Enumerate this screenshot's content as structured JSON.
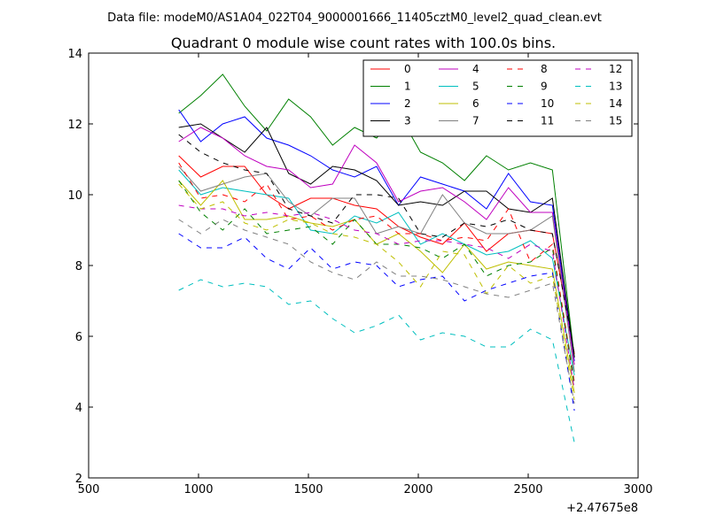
{
  "suptitle": "Data file: modeM0/AS1A04_022T04_9000001666_11405cztM0_level2_quad_clean.evt",
  "chart_data": {
    "type": "line",
    "title": "Quadrant 0 module wise count rates with 100.0s bins.",
    "xlabel": "",
    "ylabel": "",
    "x_offset_label": "+2.47675e8",
    "xlim": [
      500,
      3000
    ],
    "ylim": [
      2,
      14
    ],
    "xticks": [
      500,
      1000,
      1500,
      2000,
      2500,
      3000
    ],
    "yticks": [
      2,
      4,
      6,
      8,
      10,
      12,
      14
    ],
    "grid": false,
    "legend_position": "top-right",
    "legend_columns": 4,
    "x": [
      910,
      1010,
      1110,
      1210,
      1310,
      1410,
      1510,
      1610,
      1710,
      1810,
      1910,
      2010,
      2110,
      2210,
      2310,
      2410,
      2510,
      2610,
      2710
    ],
    "series": [
      {
        "name": "0",
        "color": "#ff0000",
        "dash": "solid",
        "values": [
          11.1,
          10.5,
          10.8,
          10.8,
          10.0,
          9.6,
          9.9,
          9.9,
          9.7,
          9.6,
          9.1,
          8.8,
          8.6,
          9.2,
          8.4,
          8.9,
          9.0,
          8.9,
          5.5
        ]
      },
      {
        "name": "1",
        "color": "#008000",
        "dash": "solid",
        "values": [
          12.3,
          12.8,
          13.4,
          12.5,
          11.8,
          12.7,
          12.2,
          11.4,
          11.9,
          11.6,
          12.3,
          11.2,
          10.9,
          10.4,
          11.1,
          10.7,
          10.9,
          10.7,
          5.4
        ]
      },
      {
        "name": "2",
        "color": "#0000ff",
        "dash": "solid",
        "values": [
          12.4,
          11.5,
          12.0,
          12.2,
          11.6,
          11.4,
          11.1,
          10.7,
          10.5,
          10.8,
          9.7,
          10.5,
          10.3,
          10.1,
          9.6,
          10.6,
          9.8,
          9.7,
          5.3
        ]
      },
      {
        "name": "3",
        "color": "#000000",
        "dash": "solid",
        "values": [
          11.9,
          12.0,
          11.6,
          11.2,
          11.9,
          10.6,
          10.3,
          10.8,
          10.7,
          10.4,
          9.7,
          9.8,
          9.7,
          10.1,
          10.1,
          9.6,
          9.5,
          9.9,
          5.4
        ]
      },
      {
        "name": "4",
        "color": "#bf00bf",
        "dash": "solid",
        "values": [
          11.5,
          11.9,
          11.6,
          11.1,
          10.8,
          10.7,
          10.2,
          10.3,
          11.4,
          10.9,
          9.8,
          10.1,
          10.2,
          9.8,
          9.3,
          10.2,
          9.5,
          9.5,
          5.2
        ]
      },
      {
        "name": "5",
        "color": "#00bfbf",
        "dash": "solid",
        "values": [
          10.7,
          10.0,
          10.2,
          10.1,
          10.0,
          9.9,
          9.0,
          8.9,
          9.4,
          9.2,
          9.5,
          8.6,
          8.9,
          8.6,
          8.3,
          8.4,
          8.7,
          8.2,
          4.9
        ]
      },
      {
        "name": "6",
        "color": "#bfbf00",
        "dash": "solid",
        "values": [
          10.4,
          9.7,
          10.4,
          9.3,
          9.3,
          9.4,
          9.2,
          9.1,
          9.3,
          8.6,
          8.9,
          8.4,
          7.8,
          8.6,
          7.9,
          8.1,
          8.0,
          7.9,
          4.4
        ]
      },
      {
        "name": "7",
        "color": "#808080",
        "dash": "solid",
        "values": [
          10.8,
          10.1,
          10.3,
          10.5,
          10.6,
          9.8,
          9.4,
          9.9,
          9.9,
          8.9,
          9.1,
          8.9,
          10.0,
          9.2,
          8.9,
          8.9,
          9.0,
          9.4,
          5.0
        ]
      },
      {
        "name": "8",
        "color": "#ff0000",
        "dash": "dashed",
        "values": [
          10.9,
          9.9,
          10.0,
          9.8,
          10.3,
          9.3,
          9.4,
          9.0,
          9.3,
          9.4,
          8.9,
          8.9,
          8.7,
          8.8,
          8.7,
          9.6,
          8.1,
          8.6,
          4.7
        ]
      },
      {
        "name": "9",
        "color": "#008000",
        "dash": "dashed",
        "values": [
          10.4,
          9.5,
          9.0,
          9.6,
          8.9,
          9.0,
          9.1,
          8.6,
          9.3,
          8.6,
          8.6,
          8.5,
          8.2,
          8.6,
          7.7,
          8.0,
          8.1,
          8.5,
          4.6
        ]
      },
      {
        "name": "10",
        "color": "#0000ff",
        "dash": "dashed",
        "values": [
          8.9,
          8.5,
          8.5,
          8.8,
          8.2,
          7.9,
          8.5,
          7.9,
          8.1,
          8.0,
          7.4,
          7.6,
          7.7,
          7.0,
          7.3,
          7.5,
          7.7,
          7.8,
          3.9
        ]
      },
      {
        "name": "11",
        "color": "#000000",
        "dash": "dashed",
        "values": [
          11.7,
          11.2,
          10.9,
          10.7,
          10.6,
          9.6,
          9.4,
          9.2,
          10.0,
          10.0,
          9.9,
          8.9,
          8.8,
          9.2,
          9.1,
          9.3,
          9.0,
          8.9,
          5.5
        ]
      },
      {
        "name": "12",
        "color": "#bf00bf",
        "dash": "dashed",
        "values": [
          9.7,
          9.6,
          9.6,
          9.4,
          9.5,
          9.4,
          9.5,
          9.3,
          9.0,
          8.9,
          8.6,
          8.7,
          8.7,
          8.6,
          8.5,
          8.2,
          8.6,
          8.4,
          4.5
        ]
      },
      {
        "name": "13",
        "color": "#00bfbf",
        "dash": "dashed",
        "values": [
          7.3,
          7.6,
          7.4,
          7.5,
          7.4,
          6.9,
          7.0,
          6.5,
          6.1,
          6.3,
          6.6,
          5.9,
          6.1,
          6.0,
          5.7,
          5.7,
          6.2,
          5.9,
          3.0
        ]
      },
      {
        "name": "14",
        "color": "#bfbf00",
        "dash": "dashed",
        "values": [
          10.3,
          9.6,
          9.8,
          9.2,
          9.0,
          9.3,
          9.2,
          8.9,
          8.8,
          8.6,
          8.1,
          7.4,
          8.4,
          8.3,
          7.2,
          8.0,
          7.5,
          7.7,
          4.2
        ]
      },
      {
        "name": "15",
        "color": "#808080",
        "dash": "dashed",
        "values": [
          9.3,
          8.9,
          9.3,
          9.0,
          8.8,
          8.6,
          8.1,
          7.8,
          7.6,
          8.1,
          7.7,
          7.7,
          7.6,
          7.4,
          7.2,
          7.1,
          7.3,
          7.5,
          4.1
        ]
      }
    ]
  }
}
